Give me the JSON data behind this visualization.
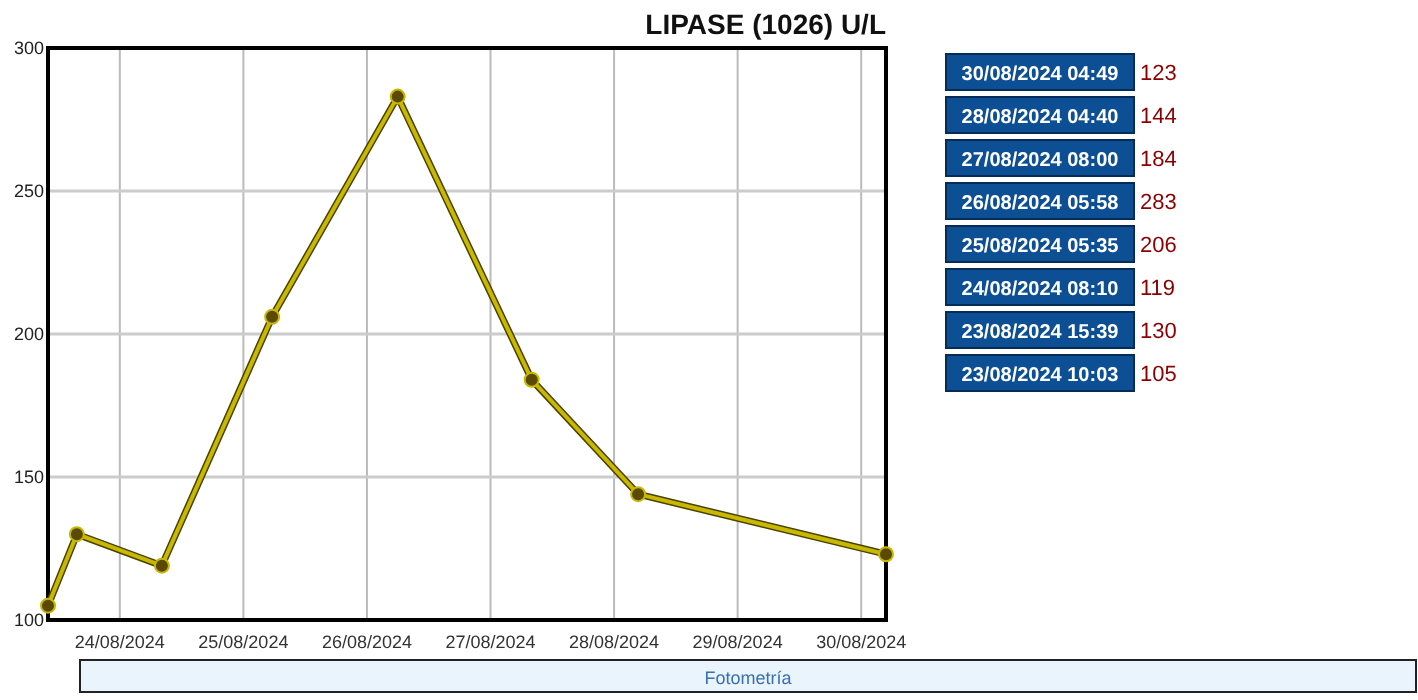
{
  "chart_data": {
    "type": "line",
    "title": "LIPASE (1026) U/L",
    "x": [
      "2024-08-23T10:03",
      "2024-08-23T15:39",
      "2024-08-24T08:10",
      "2024-08-25T05:35",
      "2024-08-26T05:58",
      "2024-08-27T08:00",
      "2024-08-28T04:40",
      "2024-08-30T04:49"
    ],
    "series": [
      {
        "color": "#c9b800",
        "values": [
          105,
          130,
          119,
          206,
          283,
          184,
          144,
          123
        ]
      }
    ],
    "xlim": [
      "2024-08-23T10:03",
      "2024-08-30T04:49"
    ],
    "xticks": [
      {
        "value": "2024-08-24",
        "label": "24/08/2024"
      },
      {
        "value": "2024-08-25",
        "label": "25/08/2024"
      },
      {
        "value": "2024-08-26",
        "label": "26/08/2024"
      },
      {
        "value": "2024-08-27",
        "label": "27/08/2024"
      },
      {
        "value": "2024-08-28",
        "label": "28/08/2024"
      },
      {
        "value": "2024-08-29",
        "label": "29/08/2024"
      },
      {
        "value": "2024-08-30",
        "label": "30/08/2024"
      }
    ],
    "ylim": [
      100,
      300
    ],
    "yticks": [
      100,
      150,
      200,
      250,
      300
    ],
    "grid": true,
    "marker": "circle",
    "line_style": "solid",
    "annotations": [
      "Fotometría",
      "30/08/2024 04:49",
      "123",
      "28/08/2024 04:40",
      "144",
      "27/08/2024 08:00",
      "184",
      "26/08/2024 05:58",
      "283",
      "25/08/2024 05:35",
      "206",
      "24/08/2024 08:10",
      "119",
      "23/08/2024 15:39",
      "130",
      "23/08/2024 10:03",
      "105"
    ]
  }
}
